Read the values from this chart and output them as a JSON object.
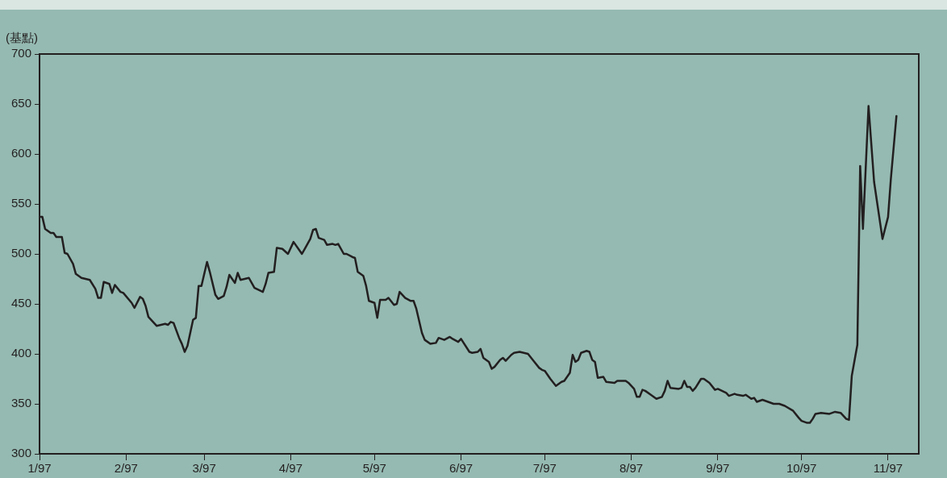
{
  "chart_data": {
    "type": "line",
    "ylabel": "(基點)",
    "x": [
      "1997-01-01",
      "1997-01-02",
      "1997-01-03",
      "1997-01-05",
      "1997-01-06",
      "1997-01-07",
      "1997-01-09",
      "1997-01-10",
      "1997-01-11",
      "1997-01-13",
      "1997-01-14",
      "1997-01-16",
      "1997-01-19",
      "1997-01-21",
      "1997-01-22",
      "1997-01-23",
      "1997-01-24",
      "1997-01-26",
      "1997-01-27",
      "1997-01-28",
      "1997-01-30",
      "1997-01-31",
      "1997-02-03",
      "1997-02-04",
      "1997-02-06",
      "1997-02-07",
      "1997-02-08",
      "1997-02-09",
      "1997-02-11",
      "1997-02-12",
      "1997-02-15",
      "1997-02-16",
      "1997-02-17",
      "1997-02-18",
      "1997-02-20",
      "1997-02-21",
      "1997-02-22",
      "1997-02-23",
      "1997-02-25",
      "1997-02-26",
      "1997-02-27",
      "1997-02-28",
      "1997-03-02",
      "1997-03-03",
      "1997-03-05",
      "1997-03-06",
      "1997-03-08",
      "1997-03-09",
      "1997-03-10",
      "1997-03-12",
      "1997-03-13",
      "1997-03-14",
      "1997-03-17",
      "1997-03-19",
      "1997-03-22",
      "1997-03-23",
      "1997-03-24",
      "1997-03-26",
      "1997-03-27",
      "1997-03-29",
      "1997-03-31",
      "1997-04-02",
      "1997-04-04",
      "1997-04-05",
      "1997-04-06",
      "1997-04-08",
      "1997-04-09",
      "1997-04-10",
      "1997-04-11",
      "1997-04-13",
      "1997-04-14",
      "1997-04-16",
      "1997-04-17",
      "1997-04-18",
      "1997-04-20",
      "1997-04-21",
      "1997-04-23",
      "1997-04-24",
      "1997-04-25",
      "1997-04-27",
      "1997-04-28",
      "1997-04-29",
      "1997-05-01",
      "1997-05-02",
      "1997-05-03",
      "1997-05-05",
      "1997-05-06",
      "1997-05-08",
      "1997-05-09",
      "1997-05-10",
      "1997-05-12",
      "1997-05-14",
      "1997-05-15",
      "1997-05-16",
      "1997-05-18",
      "1997-05-19",
      "1997-05-21",
      "1997-05-23",
      "1997-05-24",
      "1997-05-26",
      "1997-05-28",
      "1997-05-29",
      "1997-05-31",
      "1997-06-01",
      "1997-06-04",
      "1997-06-05",
      "1997-06-07",
      "1997-06-08",
      "1997-06-09",
      "1997-06-11",
      "1997-06-12",
      "1997-06-13",
      "1997-06-15",
      "1997-06-16",
      "1997-06-17",
      "1997-06-19",
      "1997-06-20",
      "1997-06-22",
      "1997-06-25",
      "1997-06-27",
      "1997-06-29",
      "1997-06-30",
      "1997-07-01",
      "1997-07-03",
      "1997-07-05",
      "1997-07-07",
      "1997-07-08",
      "1997-07-10",
      "1997-07-11",
      "1997-07-12",
      "1997-07-13",
      "1997-07-14",
      "1997-07-16",
      "1997-07-17",
      "1997-07-18",
      "1997-07-19",
      "1997-07-20",
      "1997-07-22",
      "1997-07-23",
      "1997-07-26",
      "1997-07-27",
      "1997-07-30",
      "1997-07-31",
      "1997-08-02",
      "1997-08-03",
      "1997-08-04",
      "1997-08-05",
      "1997-08-06",
      "1997-08-08",
      "1997-08-10",
      "1997-08-12",
      "1997-08-13",
      "1997-08-14",
      "1997-08-15",
      "1997-08-18",
      "1997-08-19",
      "1997-08-20",
      "1997-08-21",
      "1997-08-22",
      "1997-08-23",
      "1997-08-24",
      "1997-08-26",
      "1997-08-27",
      "1997-08-29",
      "1997-08-31",
      "1997-09-01",
      "1997-09-04",
      "1997-09-05",
      "1997-09-07",
      "1997-09-08",
      "1997-09-10",
      "1997-09-11",
      "1997-09-13",
      "1997-09-14",
      "1997-09-15",
      "1997-09-17",
      "1997-09-19",
      "1997-09-21",
      "1997-09-23",
      "1997-09-25",
      "1997-09-28",
      "1997-09-30",
      "1997-10-01",
      "1997-10-03",
      "1997-10-04",
      "1997-10-05",
      "1997-10-06",
      "1997-10-08",
      "1997-10-11",
      "1997-10-13",
      "1997-10-15",
      "1997-10-17",
      "1997-10-18",
      "1997-10-19",
      "1997-10-21",
      "1997-10-22",
      "1997-10-23",
      "1997-10-25",
      "1997-10-27",
      "1997-10-30",
      "1997-11-01",
      "1997-11-02",
      "1997-11-04"
    ],
    "series": [
      {
        "color": "#231f20",
        "values": [
          537,
          537,
          525,
          521,
          521,
          517,
          517,
          501,
          500,
          490,
          480,
          476,
          474,
          465,
          456,
          456,
          472,
          470,
          461,
          469,
          462,
          461,
          451,
          446,
          457,
          455,
          448,
          437,
          431,
          428,
          430,
          429,
          432,
          431,
          416,
          410,
          402,
          408,
          434,
          436,
          468,
          468,
          492,
          482,
          459,
          455,
          458,
          467,
          479,
          471,
          481,
          474,
          476,
          466,
          462,
          470,
          481,
          482,
          506,
          505,
          500,
          512,
          504,
          500,
          505,
          515,
          524,
          525,
          516,
          514,
          509,
          510,
          509,
          510,
          500,
          500,
          497,
          496,
          482,
          478,
          468,
          453,
          451,
          436,
          454,
          454,
          456,
          449,
          450,
          462,
          456,
          453,
          453,
          445,
          421,
          414,
          410,
          411,
          416,
          414,
          417,
          415,
          412,
          415,
          402,
          401,
          402,
          405,
          396,
          392,
          385,
          387,
          394,
          396,
          393,
          399,
          401,
          402,
          400,
          393,
          386,
          384,
          383,
          375,
          368,
          372,
          373,
          381,
          399,
          392,
          394,
          401,
          403,
          402,
          394,
          392,
          376,
          377,
          372,
          371,
          373,
          373,
          371,
          365,
          357,
          357,
          364,
          363,
          359,
          355,
          357,
          363,
          373,
          366,
          365,
          366,
          373,
          367,
          367,
          363,
          366,
          375,
          375,
          371,
          364,
          365,
          361,
          358,
          360,
          359,
          358,
          359,
          355,
          356,
          352,
          354,
          352,
          350,
          350,
          348,
          343,
          336,
          333,
          331,
          331,
          335,
          340,
          341,
          340,
          342,
          341,
          335,
          334,
          378,
          409,
          588,
          525,
          648,
          572,
          515,
          537,
          575,
          638
        ]
      }
    ],
    "xlim": [
      "1997-01-01",
      "1997-11-12"
    ],
    "xticks": [
      {
        "value": "1997-01-01",
        "label": "1/97"
      },
      {
        "value": "1997-02-01",
        "label": "2/97"
      },
      {
        "value": "1997-03-01",
        "label": "3/97"
      },
      {
        "value": "1997-04-01",
        "label": "4/97"
      },
      {
        "value": "1997-05-01",
        "label": "5/97"
      },
      {
        "value": "1997-06-01",
        "label": "6/97"
      },
      {
        "value": "1997-07-01",
        "label": "7/97"
      },
      {
        "value": "1997-08-01",
        "label": "8/97"
      },
      {
        "value": "1997-09-01",
        "label": "9/97"
      },
      {
        "value": "1997-10-01",
        "label": "10/97"
      },
      {
        "value": "1997-11-01",
        "label": "11/97"
      }
    ],
    "ylim": [
      300,
      700
    ],
    "yticks": [
      300,
      350,
      400,
      450,
      500,
      550,
      600,
      650,
      700
    ],
    "grid": false,
    "legend": false,
    "marker": "none",
    "line_style": "solid"
  }
}
